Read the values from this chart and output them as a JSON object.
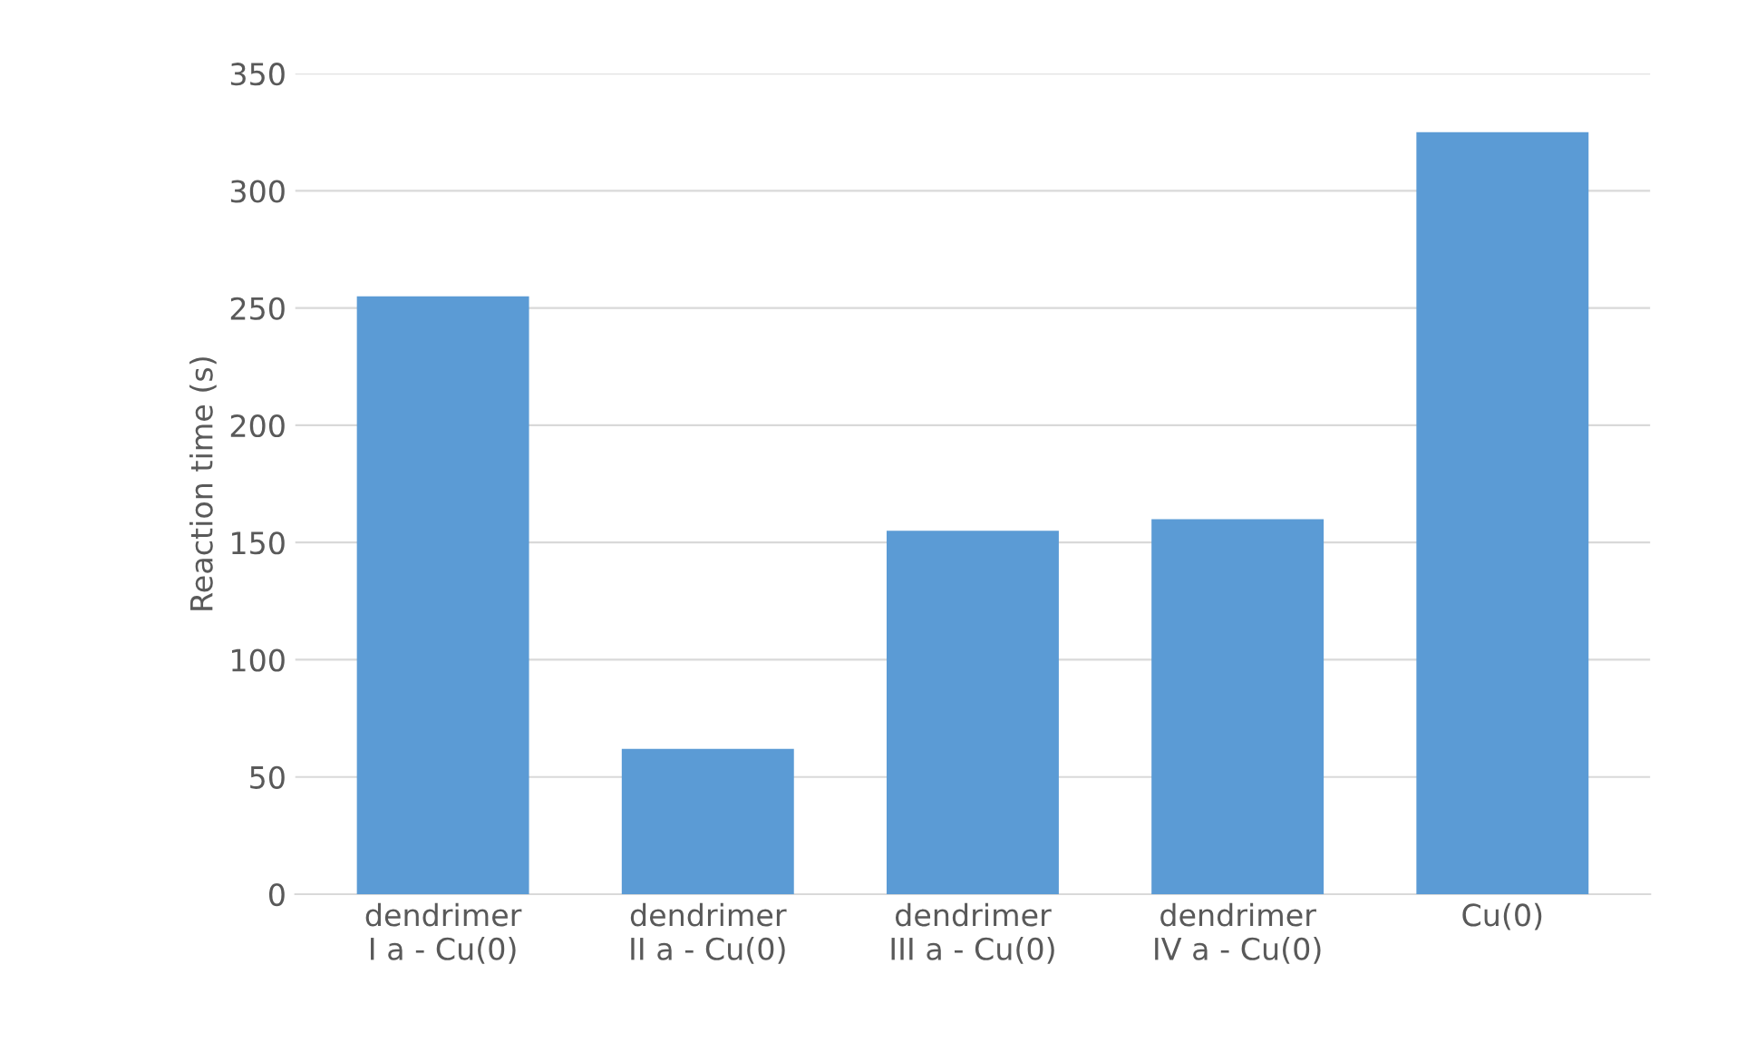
{
  "chart_data": {
    "type": "bar",
    "categories": [
      "dendrimer\nI a - Cu(0)",
      "dendrimer\nII a - Cu(0)",
      "dendrimer\nIII a - Cu(0)",
      "dendrimer\nIV a - Cu(0)",
      "Cu(0)"
    ],
    "values": [
      255,
      62,
      155,
      160,
      325
    ],
    "color": "#5b9bd5",
    "ylabel": "Reaction time (s)",
    "ylim": [
      0,
      350
    ],
    "yticks": [
      0,
      50,
      100,
      150,
      200,
      250,
      300,
      350
    ],
    "grid": "y"
  }
}
